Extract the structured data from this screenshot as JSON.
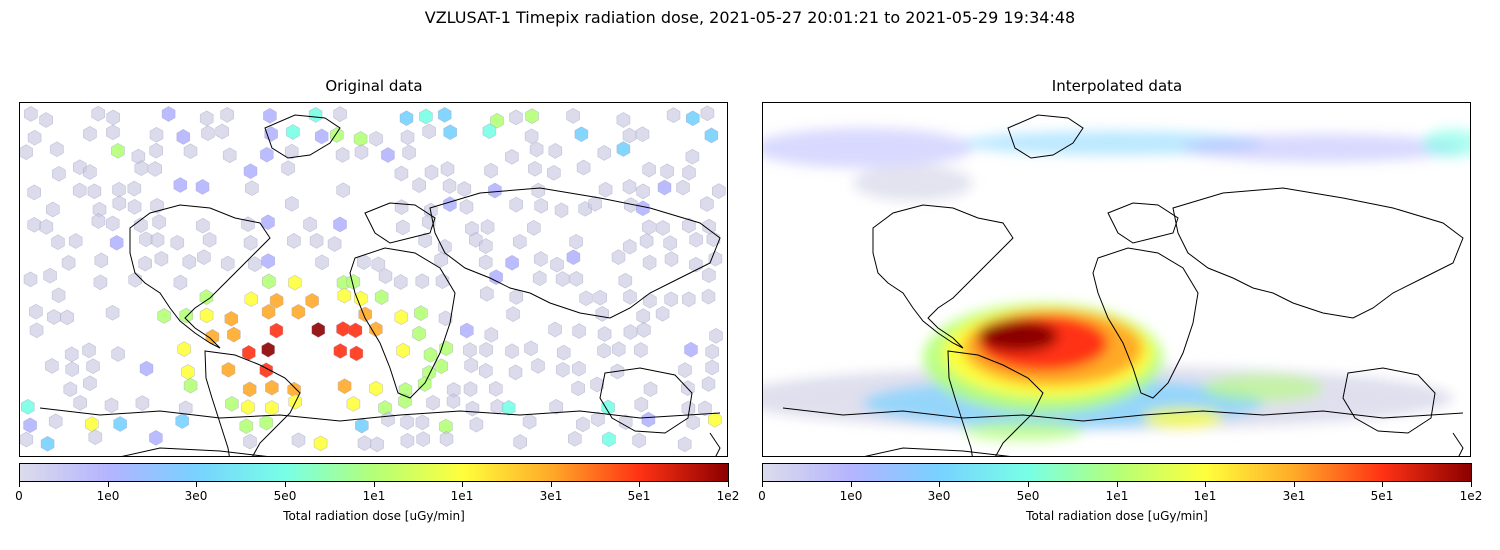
{
  "suptitle": "VZLUSAT-1 Timepix radiation dose, 2021-05-27 20:01:21 to 2021-05-29 19:34:48",
  "panels": [
    {
      "title": "Original data"
    },
    {
      "title": "Interpolated data"
    }
  ],
  "colorbar": {
    "label": "Total radiation dose [uGy/min]",
    "ticks": [
      "0",
      "1e0",
      "3e0",
      "5e0",
      "1e1",
      "1e1",
      "3e1",
      "5e1",
      "1e2"
    ],
    "colormap": [
      "#dcdcec",
      "#b4b4ff",
      "#78d2ff",
      "#78ffe6",
      "#b4ff78",
      "#ffff3c",
      "#ffaa28",
      "#ff3214",
      "#8c0000"
    ]
  },
  "colors": {
    "background": "#ffffff",
    "coastline": "#000000",
    "low_hex": "#c8c8e0"
  }
}
